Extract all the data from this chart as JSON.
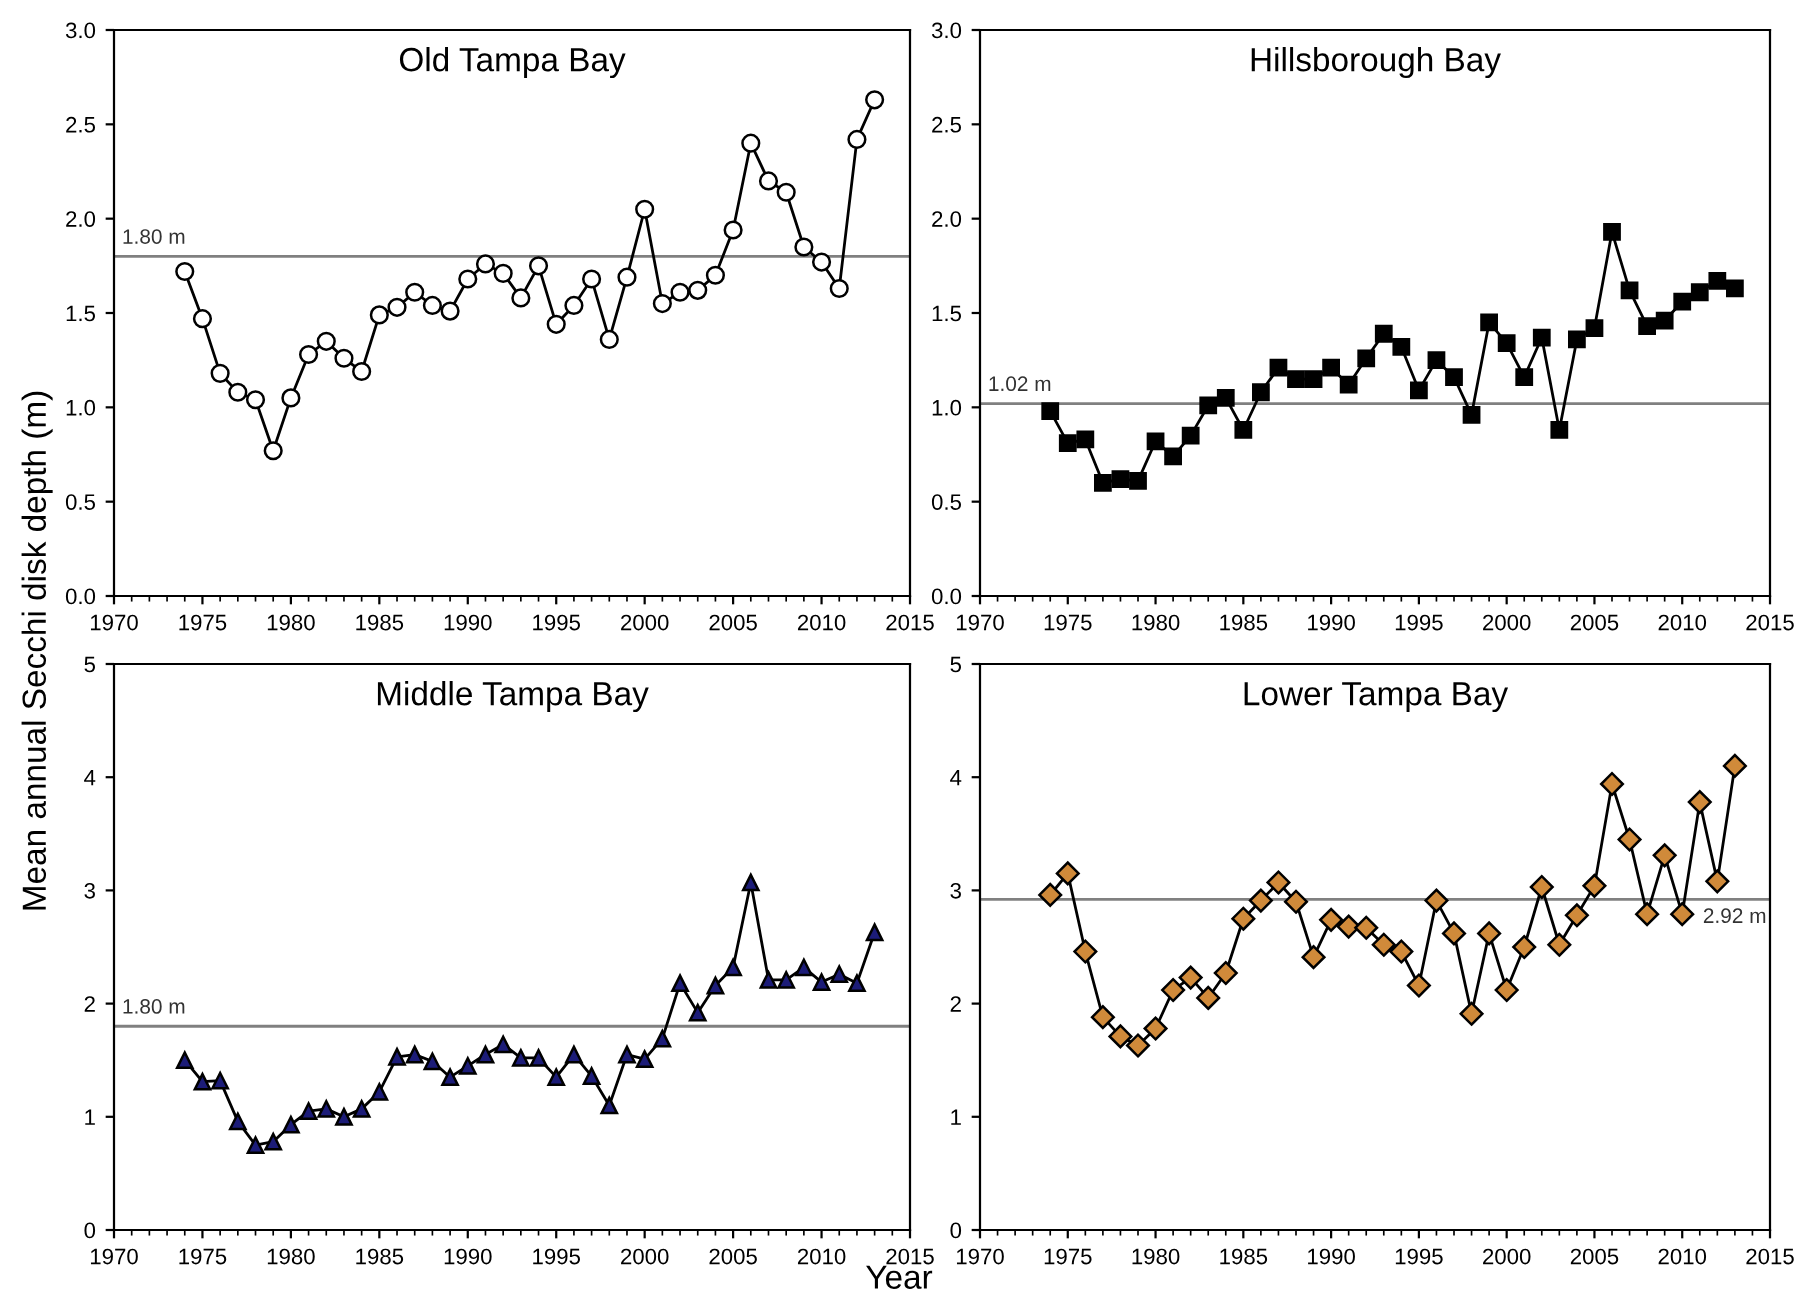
{
  "chart_data": [
    {
      "type": "line",
      "title": "Old Tampa Bay",
      "ylabel": "Mean annual Secchi disk depth (m)",
      "marker": "circle",
      "line_style": "solid",
      "grid": false,
      "x": [
        1974,
        1975,
        1976,
        1977,
        1978,
        1979,
        1980,
        1981,
        1982,
        1983,
        1984,
        1985,
        1986,
        1987,
        1988,
        1989,
        1990,
        1991,
        1992,
        1993,
        1994,
        1995,
        1996,
        1997,
        1998,
        1999,
        2000,
        2001,
        2002,
        2003,
        2004,
        2005,
        2006,
        2007,
        2008,
        2009,
        2010,
        2011,
        2012,
        2013
      ],
      "series": [
        {
          "color": "#ffffff",
          "values": [
            1.72,
            1.47,
            1.18,
            1.08,
            1.04,
            0.77,
            1.05,
            1.28,
            1.35,
            1.26,
            1.19,
            1.49,
            1.53,
            1.61,
            1.54,
            1.51,
            1.68,
            1.76,
            1.71,
            1.58,
            1.75,
            1.44,
            1.54,
            1.68,
            1.36,
            1.69,
            2.05,
            1.55,
            1.61,
            1.62,
            1.7,
            1.94,
            2.4,
            2.2,
            2.14,
            1.85,
            1.77,
            1.63,
            2.42,
            2.63
          ]
        }
      ],
      "xlim": [
        1970,
        2015
      ],
      "xticks": [
        1970,
        1975,
        1980,
        1985,
        1990,
        1995,
        2000,
        2005,
        2010,
        2015
      ],
      "ylim": [
        0,
        3
      ],
      "yticks": [
        {
          "value": 0,
          "label": "0.0"
        },
        {
          "value": 0.5,
          "label": "0.5"
        },
        {
          "value": 1,
          "label": "1.0"
        },
        {
          "value": 1.5,
          "label": "1.5"
        },
        {
          "value": 2,
          "label": "2.0"
        },
        {
          "value": 2.5,
          "label": "2.5"
        },
        {
          "value": 3,
          "label": "3.0"
        }
      ],
      "ref_lines": [
        {
          "axis": "y",
          "value": 1.8,
          "label": "1.80 m",
          "color": "#808080"
        }
      ]
    },
    {
      "type": "line",
      "title": "Hillsborough Bay",
      "marker": "square",
      "line_style": "solid",
      "grid": false,
      "x": [
        1974,
        1975,
        1976,
        1977,
        1978,
        1979,
        1980,
        1981,
        1982,
        1983,
        1984,
        1985,
        1986,
        1987,
        1988,
        1989,
        1990,
        1991,
        1992,
        1993,
        1994,
        1995,
        1996,
        1997,
        1998,
        1999,
        2000,
        2001,
        2002,
        2003,
        2004,
        2005,
        2006,
        2007,
        2008,
        2009,
        2010,
        2011,
        2012,
        2013
      ],
      "series": [
        {
          "color": "#000000",
          "values": [
            0.98,
            0.81,
            0.83,
            0.6,
            0.62,
            0.61,
            0.82,
            0.74,
            0.85,
            1.01,
            1.05,
            0.88,
            1.08,
            1.21,
            1.15,
            1.15,
            1.21,
            1.12,
            1.26,
            1.39,
            1.32,
            1.09,
            1.25,
            1.16,
            0.96,
            1.45,
            1.34,
            1.16,
            1.37,
            0.88,
            1.36,
            1.42,
            1.93,
            1.62,
            1.43,
            1.46,
            1.56,
            1.61,
            1.67,
            1.63
          ]
        }
      ],
      "xlim": [
        1970,
        2015
      ],
      "xticks": [
        1970,
        1975,
        1980,
        1985,
        1990,
        1995,
        2000,
        2005,
        2010,
        2015
      ],
      "ylim": [
        0,
        3
      ],
      "yticks": [
        {
          "value": 0,
          "label": "0.0"
        },
        {
          "value": 0.5,
          "label": "0.5"
        },
        {
          "value": 1,
          "label": "1.0"
        },
        {
          "value": 1.5,
          "label": "1.5"
        },
        {
          "value": 2,
          "label": "2.0"
        },
        {
          "value": 2.5,
          "label": "2.5"
        },
        {
          "value": 3,
          "label": "3.0"
        }
      ],
      "ref_lines": [
        {
          "axis": "y",
          "value": 1.02,
          "label": "1.02 m",
          "color": "#808080"
        }
      ]
    },
    {
      "type": "line",
      "title": "Middle Tampa Bay",
      "xlabel": "Year",
      "marker": "triangle",
      "line_style": "solid",
      "grid": false,
      "x": [
        1974,
        1975,
        1976,
        1977,
        1978,
        1979,
        1980,
        1981,
        1982,
        1983,
        1984,
        1985,
        1986,
        1987,
        1988,
        1989,
        1990,
        1991,
        1992,
        1993,
        1994,
        1995,
        1996,
        1997,
        1998,
        1999,
        2000,
        2001,
        2002,
        2003,
        2004,
        2005,
        2006,
        2007,
        2008,
        2009,
        2010,
        2011,
        2012,
        2013
      ],
      "series": [
        {
          "color": "#1c1c78",
          "values": [
            1.5,
            1.31,
            1.32,
            0.96,
            0.75,
            0.78,
            0.93,
            1.05,
            1.07,
            1.0,
            1.07,
            1.22,
            1.53,
            1.55,
            1.49,
            1.35,
            1.45,
            1.55,
            1.64,
            1.52,
            1.52,
            1.35,
            1.55,
            1.36,
            1.1,
            1.55,
            1.51,
            1.69,
            2.18,
            1.92,
            2.16,
            2.32,
            3.07,
            2.21,
            2.21,
            2.32,
            2.19,
            2.26,
            2.18,
            2.63
          ]
        }
      ],
      "xlim": [
        1970,
        2015
      ],
      "xticks": [
        1970,
        1975,
        1980,
        1985,
        1990,
        1995,
        2000,
        2005,
        2010,
        2015
      ],
      "ylim": [
        0,
        5
      ],
      "yticks": [
        0,
        1,
        2,
        3,
        4,
        5
      ],
      "ref_lines": [
        {
          "axis": "y",
          "value": 1.8,
          "label": "1.80 m",
          "color": "#808080"
        }
      ]
    },
    {
      "type": "line",
      "title": "Lower Tampa Bay",
      "marker": "diamond",
      "line_style": "solid",
      "grid": false,
      "x": [
        1974,
        1975,
        1976,
        1977,
        1978,
        1979,
        1980,
        1981,
        1982,
        1983,
        1984,
        1985,
        1986,
        1987,
        1988,
        1989,
        1990,
        1991,
        1992,
        1993,
        1994,
        1995,
        1996,
        1997,
        1998,
        1999,
        2000,
        2001,
        2002,
        2003,
        2004,
        2005,
        2006,
        2007,
        2008,
        2009,
        2010,
        2011,
        2012,
        2013
      ],
      "series": [
        {
          "color": "#d08a3a",
          "values": [
            2.96,
            3.15,
            2.46,
            1.88,
            1.71,
            1.63,
            1.78,
            2.12,
            2.23,
            2.05,
            2.27,
            2.75,
            2.91,
            3.07,
            2.9,
            2.41,
            2.74,
            2.68,
            2.67,
            2.52,
            2.46,
            2.16,
            2.91,
            2.62,
            1.91,
            2.62,
            2.12,
            2.5,
            3.03,
            2.52,
            2.78,
            3.04,
            3.94,
            3.45,
            2.79,
            3.31,
            2.79,
            3.78,
            3.08,
            4.1
          ]
        }
      ],
      "xlim": [
        1970,
        2015
      ],
      "xticks": [
        1970,
        1975,
        1980,
        1985,
        1990,
        1995,
        2000,
        2005,
        2010,
        2015
      ],
      "ylim": [
        0,
        5
      ],
      "yticks": [
        0,
        1,
        2,
        3,
        4,
        5
      ],
      "ref_lines": [
        {
          "axis": "y",
          "value": 2.92,
          "label": "2.92 m",
          "color": "#808080"
        }
      ]
    }
  ]
}
